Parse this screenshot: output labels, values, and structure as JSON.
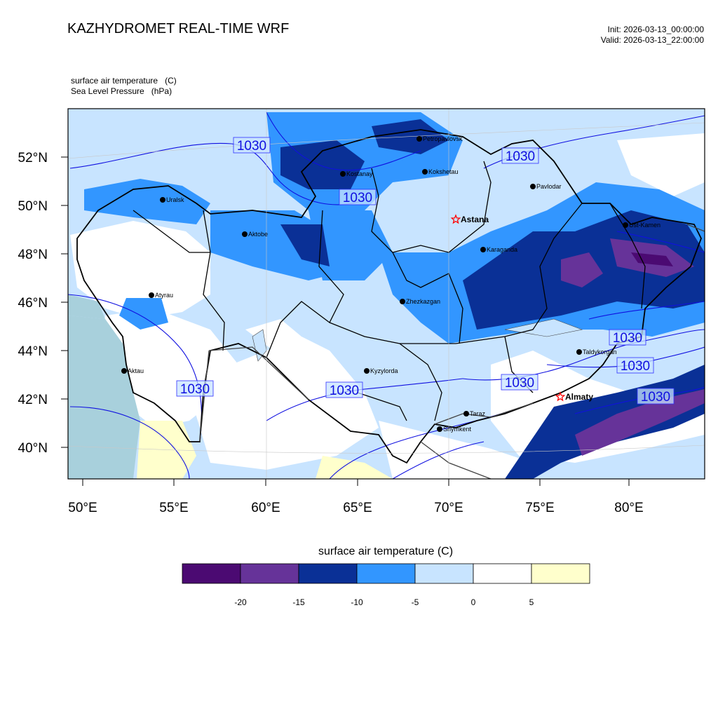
{
  "header": {
    "title": "KAZHYDROMET REAL-TIME WRF",
    "init": "Init: 2026-03-13_00:00:00",
    "valid": "Valid: 2026-03-13_22:00:00"
  },
  "fields": {
    "temperature": {
      "name": "surface air temperature",
      "unit": "(C)"
    },
    "pressure": {
      "name": "Sea Level Pressure",
      "unit": "(hPa)"
    }
  },
  "axes": {
    "lat_labels": [
      "52°N",
      "50°N",
      "48°N",
      "46°N",
      "44°N",
      "42°N",
      "40°N"
    ],
    "lon_labels": [
      "50°E",
      "55°E",
      "60°E",
      "65°E",
      "70°E",
      "75°E",
      "80°E"
    ]
  },
  "cities": [
    {
      "name": "Petropavlovsk",
      "capital": false
    },
    {
      "name": "Kostanay",
      "capital": false
    },
    {
      "name": "Kokshetau",
      "capital": false
    },
    {
      "name": "Pavlodar",
      "capital": false
    },
    {
      "name": "Uralsk",
      "capital": false
    },
    {
      "name": "Astana",
      "capital": true
    },
    {
      "name": "Aktobe",
      "capital": false
    },
    {
      "name": "Ust-Kamen",
      "capital": false
    },
    {
      "name": "Karaganda",
      "capital": false
    },
    {
      "name": "Atyrau",
      "capital": false
    },
    {
      "name": "Zhezkazgan",
      "capital": false
    },
    {
      "name": "Taldykorgan",
      "capital": false
    },
    {
      "name": "Kyzylorda",
      "capital": false
    },
    {
      "name": "Aktau",
      "capital": false
    },
    {
      "name": "Almaty",
      "capital": true
    },
    {
      "name": "Taraz",
      "capital": false
    },
    {
      "name": "Shymkent",
      "capital": false
    }
  ],
  "isobar_labels": [
    "1030",
    "1030",
    "1030",
    "1030",
    "1030",
    "1030",
    "1030",
    "1030",
    "1030"
  ],
  "legend": {
    "title": "surface air temperature (C)",
    "colors": [
      "#4b0a72",
      "#663399",
      "#0a3096",
      "#3296ff",
      "#c8e4ff",
      "#ffffff",
      "#ffffcc"
    ],
    "tick_labels": [
      "-20",
      "-15",
      "-10",
      "-5",
      "0",
      "5"
    ]
  },
  "palette": {
    "cold_extreme": "#4b0a72",
    "very_cold": "#663399",
    "cold": "#0a3096",
    "cool": "#3296ff",
    "mild": "#c8e4ff",
    "above_zero": "#ffffff",
    "warm": "#ffffcc",
    "sea": "#a8d0dc",
    "isobar": "#1010e0",
    "capital_star": "#ff0000"
  }
}
